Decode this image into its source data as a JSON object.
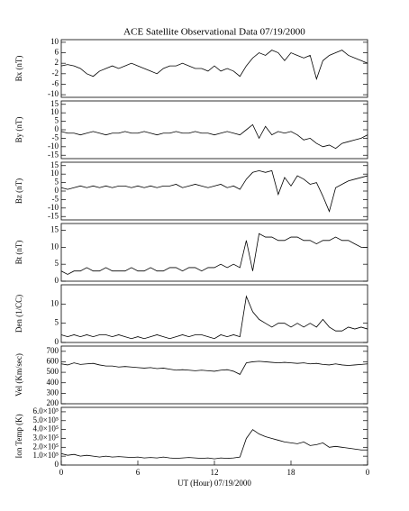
{
  "chart_data": [
    {
      "type": "line",
      "title": "ACE Satellite Observational Data  07/19/2000",
      "ylabel": "Bx (nT)",
      "color": "#000000",
      "xlim": [
        0,
        24
      ],
      "ylim": [
        -11,
        11
      ],
      "yticks": [
        -10,
        -6,
        -2,
        2,
        6,
        10
      ],
      "x": [
        0,
        0.5,
        1,
        1.5,
        2,
        2.5,
        3,
        3.5,
        4,
        4.5,
        5,
        5.5,
        6,
        6.5,
        7,
        7.5,
        8,
        8.5,
        9,
        9.5,
        10,
        10.5,
        11,
        11.5,
        12,
        12.5,
        13,
        13.5,
        14,
        14.5,
        15,
        15.5,
        16,
        16.5,
        17,
        17.5,
        18,
        18.5,
        19,
        19.5,
        20,
        20.5,
        21,
        21.5,
        22,
        22.5,
        23,
        23.5,
        24
      ],
      "values": [
        1,
        1.5,
        1,
        0,
        -2,
        -3,
        -1,
        0,
        1,
        0,
        1,
        2,
        1,
        0,
        -1,
        -2,
        0,
        1,
        1,
        2,
        1,
        0,
        0,
        -1,
        1,
        -1,
        0,
        -1,
        -3,
        1,
        4,
        6,
        5,
        7,
        6,
        3,
        6,
        5,
        4,
        5,
        -4,
        3,
        5,
        6,
        7,
        5,
        4,
        3,
        2
      ]
    },
    {
      "type": "line",
      "ylabel": "By (nT)",
      "color": "#000000",
      "xlim": [
        0,
        24
      ],
      "ylim": [
        -17,
        17
      ],
      "yticks": [
        -15,
        -10,
        -5,
        0,
        5,
        10,
        15
      ],
      "x": [
        0,
        0.5,
        1,
        1.5,
        2,
        2.5,
        3,
        3.5,
        4,
        4.5,
        5,
        5.5,
        6,
        6.5,
        7,
        7.5,
        8,
        8.5,
        9,
        9.5,
        10,
        10.5,
        11,
        11.5,
        12,
        12.5,
        13,
        13.5,
        14,
        14.5,
        15,
        15.5,
        16,
        16.5,
        17,
        17.5,
        18,
        18.5,
        19,
        19.5,
        20,
        20.5,
        21,
        21.5,
        22,
        22.5,
        23,
        23.5,
        24
      ],
      "values": [
        -1,
        -2,
        -2,
        -3,
        -2,
        -1,
        -2,
        -3,
        -2,
        -2,
        -1,
        -2,
        -2,
        -1,
        -2,
        -3,
        -2,
        -2,
        -1,
        -2,
        -2,
        -1,
        -2,
        -2,
        -3,
        -2,
        -1,
        -2,
        -3,
        0,
        3,
        -5,
        2,
        -3,
        -1,
        -2,
        -1,
        -3,
        -6,
        -5,
        -8,
        -10,
        -9,
        -11,
        -8,
        -7,
        -6,
        -5,
        -3
      ]
    },
    {
      "type": "line",
      "ylabel": "Bz (nT)",
      "color": "#000000",
      "xlim": [
        0,
        24
      ],
      "ylim": [
        -17,
        17
      ],
      "yticks": [
        -15,
        -10,
        -5,
        0,
        5,
        10,
        15
      ],
      "x": [
        0,
        0.5,
        1,
        1.5,
        2,
        2.5,
        3,
        3.5,
        4,
        4.5,
        5,
        5.5,
        6,
        6.5,
        7,
        7.5,
        8,
        8.5,
        9,
        9.5,
        10,
        10.5,
        11,
        11.5,
        12,
        12.5,
        13,
        13.5,
        14,
        14.5,
        15,
        15.5,
        16,
        16.5,
        17,
        17.5,
        18,
        18.5,
        19,
        19.5,
        20,
        20.5,
        21,
        21.5,
        22,
        22.5,
        23,
        23.5,
        24
      ],
      "values": [
        2,
        1,
        2,
        3,
        2,
        3,
        2,
        3,
        2,
        3,
        3,
        2,
        3,
        2,
        3,
        2,
        3,
        3,
        4,
        2,
        3,
        4,
        3,
        2,
        3,
        4,
        2,
        3,
        1,
        7,
        11,
        12,
        11,
        12,
        -2,
        8,
        3,
        9,
        7,
        4,
        5,
        -3,
        -12,
        2,
        4,
        6,
        7,
        8,
        9
      ]
    },
    {
      "type": "line",
      "ylabel": "Bt (nT)",
      "color": "#000000",
      "xlim": [
        0,
        24
      ],
      "ylim": [
        0,
        17
      ],
      "yticks": [
        0,
        5,
        10,
        15
      ],
      "x": [
        0,
        0.5,
        1,
        1.5,
        2,
        2.5,
        3,
        3.5,
        4,
        4.5,
        5,
        5.5,
        6,
        6.5,
        7,
        7.5,
        8,
        8.5,
        9,
        9.5,
        10,
        10.5,
        11,
        11.5,
        12,
        12.5,
        13,
        13.5,
        14,
        14.5,
        15,
        15.5,
        16,
        16.5,
        17,
        17.5,
        18,
        18.5,
        19,
        19.5,
        20,
        20.5,
        21,
        21.5,
        22,
        22.5,
        23,
        23.5,
        24
      ],
      "values": [
        3,
        2,
        3,
        3,
        4,
        3,
        3,
        4,
        3,
        3,
        3,
        4,
        3,
        3,
        4,
        3,
        3,
        4,
        4,
        3,
        4,
        4,
        3,
        4,
        4,
        5,
        4,
        5,
        4,
        12,
        3,
        14,
        13,
        13,
        12,
        12,
        13,
        13,
        12,
        12,
        11,
        12,
        12,
        13,
        12,
        12,
        11,
        10,
        10
      ]
    },
    {
      "type": "line",
      "ylabel": "Den (1/CC)",
      "color": "#000000",
      "xlim": [
        0,
        24
      ],
      "ylim": [
        0,
        15
      ],
      "yticks": [
        0,
        5,
        10
      ],
      "x": [
        0,
        0.5,
        1,
        1.5,
        2,
        2.5,
        3,
        3.5,
        4,
        4.5,
        5,
        5.5,
        6,
        6.5,
        7,
        7.5,
        8,
        8.5,
        9,
        9.5,
        10,
        10.5,
        11,
        11.5,
        12,
        12.5,
        13,
        13.5,
        14,
        14.5,
        15,
        15.5,
        16,
        16.5,
        17,
        17.5,
        18,
        18.5,
        19,
        19.5,
        20,
        20.5,
        21,
        21.5,
        22,
        22.5,
        23,
        23.5,
        24
      ],
      "values": [
        2,
        1.5,
        2,
        1.5,
        2,
        1.5,
        2,
        2,
        1.5,
        2,
        1.5,
        1,
        1.5,
        1,
        1.5,
        2,
        1.5,
        1,
        1.5,
        2,
        1.5,
        2,
        2,
        1.5,
        1,
        2,
        1.5,
        2,
        1.5,
        12,
        8,
        6,
        5,
        4,
        5,
        5,
        4,
        5,
        4,
        5,
        4,
        6,
        4,
        3,
        3,
        4,
        3.5,
        4,
        3.5
      ]
    },
    {
      "type": "line",
      "ylabel": "Vel (Km/sec)",
      "color": "#000000",
      "xlim": [
        0,
        24
      ],
      "ylim": [
        200,
        750
      ],
      "yticks": [
        200,
        300,
        400,
        500,
        600,
        700
      ],
      "x": [
        0,
        0.5,
        1,
        1.5,
        2,
        2.5,
        3,
        3.5,
        4,
        4.5,
        5,
        5.5,
        6,
        6.5,
        7,
        7.5,
        8,
        8.5,
        9,
        9.5,
        10,
        10.5,
        11,
        11.5,
        12,
        12.5,
        13,
        13.5,
        14,
        14.5,
        15,
        15.5,
        16,
        16.5,
        17,
        17.5,
        18,
        18.5,
        19,
        19.5,
        20,
        20.5,
        21,
        21.5,
        22,
        22.5,
        23,
        23.5,
        24
      ],
      "values": [
        580,
        570,
        590,
        575,
        580,
        585,
        570,
        560,
        560,
        550,
        555,
        550,
        545,
        540,
        545,
        535,
        540,
        530,
        520,
        525,
        520,
        515,
        520,
        515,
        510,
        520,
        525,
        510,
        480,
        590,
        600,
        605,
        600,
        595,
        590,
        595,
        590,
        585,
        590,
        580,
        585,
        575,
        570,
        580,
        570,
        565,
        570,
        575,
        580
      ]
    },
    {
      "type": "line",
      "ylabel": "Ion Temp (K)",
      "xlabel": "UT (Hour)  07/19/2000",
      "color": "#000000",
      "xlim": [
        0,
        24
      ],
      "ylim": [
        0,
        650000
      ],
      "yticks": [
        0,
        {
          "value": 100000,
          "label": "1.0×10⁵"
        },
        {
          "value": 200000,
          "label": "2.0×10⁵"
        },
        {
          "value": 300000,
          "label": "3.0×10⁵"
        },
        {
          "value": 400000,
          "label": "4.0×10⁵"
        },
        {
          "value": 500000,
          "label": "5.0×10⁵"
        },
        {
          "value": 600000,
          "label": "6.0×10⁵"
        }
      ],
      "xticks": [
        0,
        6,
        12,
        18,
        {
          "value": 24,
          "label": "0"
        }
      ],
      "x": [
        0,
        0.5,
        1,
        1.5,
        2,
        2.5,
        3,
        3.5,
        4,
        4.5,
        5,
        5.5,
        6,
        6.5,
        7,
        7.5,
        8,
        8.5,
        9,
        9.5,
        10,
        10.5,
        11,
        11.5,
        12,
        12.5,
        13,
        13.5,
        14,
        14.5,
        15,
        15.5,
        16,
        16.5,
        17,
        17.5,
        18,
        18.5,
        19,
        19.5,
        20,
        20.5,
        21,
        21.5,
        22,
        22.5,
        23,
        23.5,
        24
      ],
      "values": [
        130000,
        110000,
        120000,
        100000,
        110000,
        100000,
        90000,
        100000,
        90000,
        95000,
        90000,
        85000,
        90000,
        80000,
        85000,
        80000,
        90000,
        80000,
        75000,
        80000,
        85000,
        80000,
        75000,
        80000,
        70000,
        80000,
        75000,
        80000,
        90000,
        300000,
        400000,
        350000,
        320000,
        300000,
        280000,
        260000,
        250000,
        240000,
        260000,
        220000,
        230000,
        250000,
        200000,
        210000,
        200000,
        190000,
        180000,
        170000,
        170000
      ]
    }
  ]
}
